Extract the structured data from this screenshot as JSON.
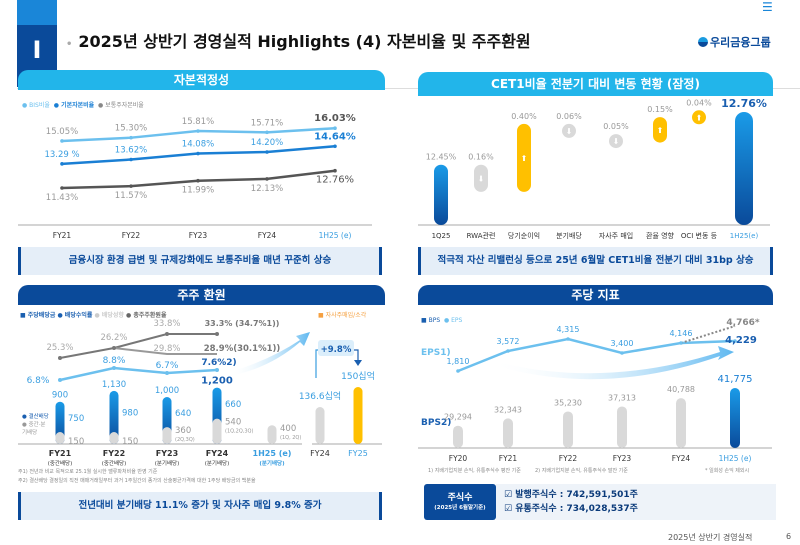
{
  "header": {
    "section_number": "I",
    "title": "2025년 상반기 경영실적 Highlights  (4) 자본비율 및 주주환원",
    "logo": "우리금융그룹",
    "menu_icon": "menu-icon"
  },
  "footer": {
    "text": "2025년 상반기 경영실적",
    "page": "6"
  },
  "colors": {
    "navy": "#0a4a9a",
    "cyan": "#22b5ea",
    "blue": "#1a86d8",
    "gold": "#ffc000",
    "gray": "#d9d9d9"
  },
  "capital": {
    "title": "자본적정성",
    "summary": "금융시장 환경 급변 및 규제강화에도 보통주비율 매년 꾸준히 상승",
    "chart_data": {
      "type": "line",
      "categories": [
        "FY21",
        "FY22",
        "FY23",
        "FY24",
        "1H25 (e)"
      ],
      "series": [
        {
          "name": "BIS비율",
          "values": [
            15.05,
            15.3,
            15.81,
            15.71,
            16.03
          ],
          "labels": [
            "15.05%",
            "15.30%",
            "15.81%",
            "15.71%",
            "16.03%"
          ],
          "color": "#6cc0ee"
        },
        {
          "name": "기본자본비율",
          "values": [
            13.29,
            13.62,
            14.08,
            14.2,
            14.64
          ],
          "labels": [
            "13.29 %",
            "13.62%",
            "14.08%",
            "14.20%",
            "14.64%"
          ],
          "color": "#1a7fd4"
        },
        {
          "name": "보통주자본비율",
          "values": [
            11.43,
            11.57,
            11.99,
            12.13,
            12.76
          ],
          "labels": [
            "11.43%",
            "11.57%",
            "11.99%",
            "12.13%",
            "12.76%"
          ],
          "color": "#555555"
        }
      ]
    }
  },
  "cet1": {
    "title": "CET1비율 전분기 대비 변동 현황 (잠정)",
    "summary": "적극적 자산 리밸런싱 등으로 25년 6월말 CET1비율  전분기 대비 31bp 상승",
    "chart_data": {
      "type": "bar",
      "subtype": "waterfall",
      "categories": [
        "1Q25",
        "RWA관련",
        "당기순이익",
        "분기배당",
        "자사주 매입",
        "환율 영향",
        "OCI 변동 등",
        "1H25(e)"
      ],
      "values": [
        12.45,
        -0.16,
        0.4,
        -0.06,
        -0.05,
        0.15,
        0.04,
        12.76
      ],
      "labels": [
        "12.45%",
        "0.16%",
        "0.40%",
        "0.06%",
        "0.05%",
        "0.15%",
        "0.04%",
        "12.76%"
      ]
    }
  },
  "shareholder": {
    "title": "주주 환원",
    "legend": [
      "주당배당금",
      "배당수익률",
      "배당성향",
      "총주주환원율"
    ],
    "buyback_legend": "자사주매입/소각",
    "final_legend": "결산배당",
    "interim_legend": "중간·분기배당",
    "summary": "전년대비 분기배당 11.1% 증가 및 자사주 매입 9.8% 증가",
    "notes": [
      "주1) 전년과 비교 목적으로 25.1월 실시한 밸류파처비율 반영 기준",
      "주2) 결산배당 결정일의 직전 매매거래일부터 과거 1주일간의 종가의 산술평균가격에 대한 1주당 배당금의 백분율"
    ],
    "chart_data": {
      "type": "bar",
      "categories": [
        "FY21",
        "FY22",
        "FY23",
        "FY24",
        "1H25 (e)"
      ],
      "sublabels": [
        "(중간배당)",
        "(중간배당)",
        "(분기배당)",
        "(분기배당)",
        "(분기배당)"
      ],
      "dps_total": [
        900,
        1130,
        1000,
        1200,
        400
      ],
      "dps_final": [
        750,
        980,
        640,
        660,
        null
      ],
      "dps_interim": [
        150,
        150,
        360,
        540,
        400
      ],
      "interim_notes": [
        "",
        "",
        "(2Q,3Q)",
        "(1Q,2Q,3Q)",
        "(1Q, 2Q)"
      ],
      "dividend_yield": [
        "6.8%",
        "8.8%",
        "6.7%",
        "7.6%2)"
      ],
      "payout_ratio": [
        "",
        "26.2%",
        "29.8%",
        "28.9%(30.1%1))"
      ],
      "total_return": [
        "25.3%",
        "26.2%",
        "33.8%",
        "33.3% (34.7%1))"
      ],
      "buyback": {
        "categories": [
          "FY24",
          "FY25"
        ],
        "values": [
          136.6,
          150
        ],
        "labels": [
          "136.6십억",
          "150십억"
        ],
        "growth": "+9.8%"
      }
    }
  },
  "pershare": {
    "title": "주당 지표",
    "legend": [
      "BPS",
      "EPS"
    ],
    "eps_label": "EPS1)",
    "bps_label": "BPS2)",
    "notes": [
      "1) 지배기업지분 손익, 유통주식수 평잔 기준",
      "2) 지배기업지분 손익,  유통주식수 말잔 기준",
      "* 일회성 손익 제외시"
    ],
    "chart_data": {
      "type": "bar+line",
      "categories": [
        "FY20",
        "FY21",
        "FY22",
        "FY23",
        "FY24",
        "1H25 (e)"
      ],
      "bps": [
        29294,
        32343,
        35230,
        37313,
        40788,
        41775
      ],
      "bps_labels": [
        "29,294",
        "32,343",
        "35,230",
        "37,313",
        "40,788",
        "41,775"
      ],
      "eps": [
        1810,
        3572,
        4315,
        3400,
        4146,
        4229
      ],
      "eps_labels": [
        "1,810",
        "3,572",
        "4,315",
        "3,400",
        "4,146",
        "4,229"
      ],
      "eps_adjusted": 4766,
      "eps_adjusted_label": "4,766*"
    },
    "shares": {
      "label": "주식수",
      "asof": "(2025년 6월말기준)",
      "issued": "발행주식수 : 742,591,501주",
      "outstanding": "유통주식수 : 734,028,537주"
    }
  }
}
